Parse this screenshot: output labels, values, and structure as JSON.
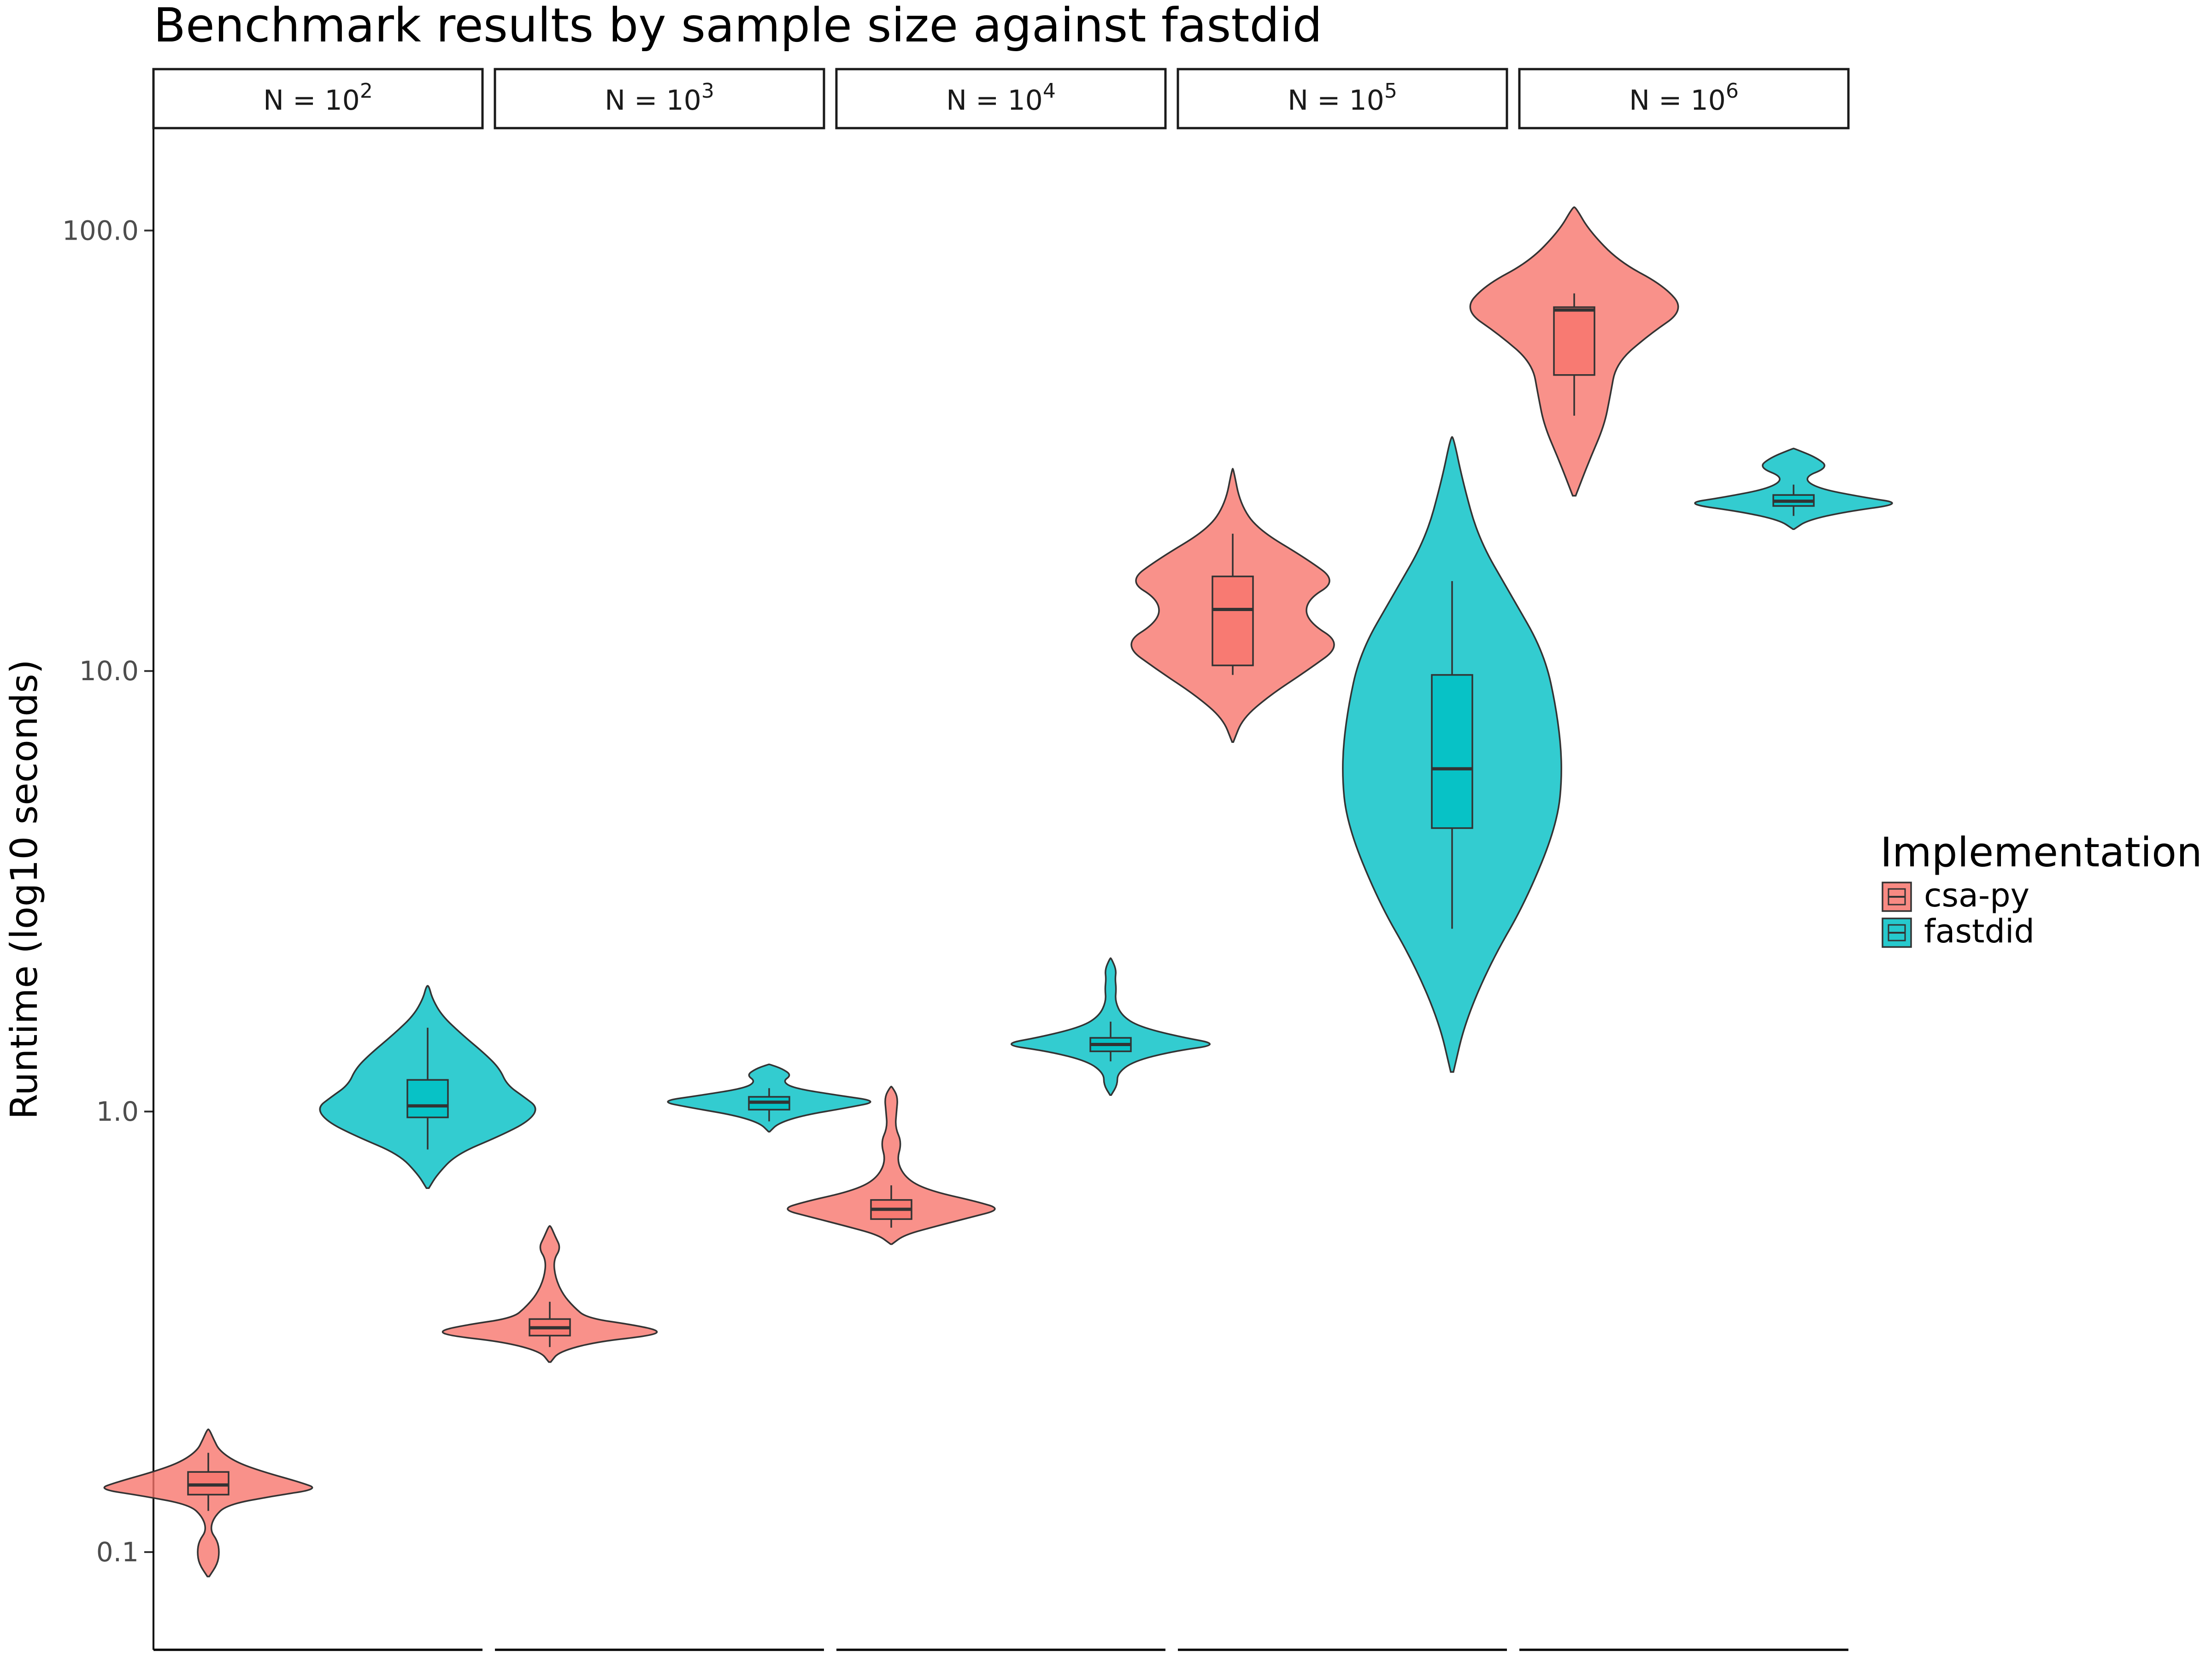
{
  "chart_data": {
    "type": "violin",
    "title": "Benchmark results by sample size against fastdid",
    "xlabel": "",
    "ylabel": "Runtime (log10 seconds)",
    "y_scale": "log10",
    "ylim": [
      0.06,
      170
    ],
    "y_ticks": [
      0.1,
      1.0,
      10.0,
      100.0
    ],
    "y_tick_labels": [
      "0.1",
      "1.0",
      "10.0",
      "100.0"
    ],
    "grid": false,
    "legend": {
      "title": "Implementation",
      "position": "right",
      "entries": [
        {
          "name": "csa-py",
          "color": "#F8766D"
        },
        {
          "name": "fastdid",
          "color": "#00BFC4"
        }
      ]
    },
    "facets": [
      {
        "strip": {
          "base": "N = 10",
          "exponent": "2"
        },
        "series": [
          {
            "name": "csa-py",
            "median": 0.142,
            "q1": 0.135,
            "q3": 0.152,
            "whisker_low": 0.124,
            "whisker_high": 0.168,
            "violin": [
              [
                0.088,
                0.005
              ],
              [
                0.094,
                0.05
              ],
              [
                0.1,
                0.06
              ],
              [
                0.106,
                0.05
              ],
              [
                0.112,
                0.01
              ],
              [
                0.12,
                0.03
              ],
              [
                0.128,
                0.1
              ],
              [
                0.134,
                0.35
              ],
              [
                0.139,
                0.6
              ],
              [
                0.144,
                0.5
              ],
              [
                0.152,
                0.3
              ],
              [
                0.16,
                0.15
              ],
              [
                0.17,
                0.06
              ],
              [
                0.18,
                0.03
              ],
              [
                0.19,
                0.005
              ]
            ]
          },
          {
            "name": "fastdid",
            "median": 1.03,
            "q1": 0.97,
            "q3": 1.18,
            "whisker_low": 0.82,
            "whisker_high": 1.55,
            "violin": [
              [
                0.67,
                0.005
              ],
              [
                0.72,
                0.04
              ],
              [
                0.8,
                0.12
              ],
              [
                0.88,
                0.3
              ],
              [
                0.95,
                0.42
              ],
              [
                1.02,
                0.46
              ],
              [
                1.08,
                0.4
              ],
              [
                1.15,
                0.33
              ],
              [
                1.25,
                0.3
              ],
              [
                1.35,
                0.24
              ],
              [
                1.5,
                0.14
              ],
              [
                1.65,
                0.06
              ],
              [
                1.8,
                0.02
              ],
              [
                1.93,
                0.005
              ]
            ]
          }
        ]
      },
      {
        "strip": {
          "base": "N = 10",
          "exponent": "3"
        },
        "series": [
          {
            "name": "csa-py",
            "median": 0.323,
            "q1": 0.31,
            "q3": 0.338,
            "whisker_low": 0.292,
            "whisker_high": 0.37,
            "violin": [
              [
                0.27,
                0.005
              ],
              [
                0.285,
                0.05
              ],
              [
                0.3,
                0.25
              ],
              [
                0.31,
                0.55
              ],
              [
                0.318,
                0.6
              ],
              [
                0.328,
                0.45
              ],
              [
                0.34,
                0.2
              ],
              [
                0.36,
                0.13
              ],
              [
                0.385,
                0.07
              ],
              [
                0.42,
                0.03
              ],
              [
                0.46,
                0.02
              ],
              [
                0.49,
                0.06
              ],
              [
                0.52,
                0.03
              ],
              [
                0.55,
                0.005
              ]
            ]
          },
          {
            "name": "fastdid",
            "median": 1.05,
            "q1": 1.01,
            "q3": 1.08,
            "whisker_low": 0.95,
            "whisker_high": 1.13,
            "violin": [
              [
                0.9,
                0.005
              ],
              [
                0.94,
                0.08
              ],
              [
                0.98,
                0.3
              ],
              [
                1.02,
                0.7
              ],
              [
                1.055,
                0.99
              ],
              [
                1.09,
                0.6
              ],
              [
                1.13,
                0.22
              ],
              [
                1.17,
                0.12
              ],
              [
                1.21,
                0.2
              ],
              [
                1.25,
                0.12
              ],
              [
                1.28,
                0.005
              ]
            ]
          }
        ]
      },
      {
        "strip": {
          "base": "N = 10",
          "exponent": "4"
        },
        "series": [
          {
            "name": "csa-py",
            "median": 0.6,
            "q1": 0.57,
            "q3": 0.63,
            "whisker_low": 0.545,
            "whisker_high": 0.68,
            "violin": [
              [
                0.5,
                0.005
              ],
              [
                0.525,
                0.1
              ],
              [
                0.55,
                0.35
              ],
              [
                0.575,
                0.6
              ],
              [
                0.6,
                0.84
              ],
              [
                0.625,
                0.65
              ],
              [
                0.66,
                0.3
              ],
              [
                0.7,
                0.12
              ],
              [
                0.77,
                0.04
              ],
              [
                0.85,
                0.08
              ],
              [
                0.92,
                0.03
              ],
              [
                1.0,
                0.04
              ],
              [
                1.08,
                0.05
              ],
              [
                1.14,
                0.005
              ]
            ]
          },
          {
            "name": "fastdid",
            "median": 1.42,
            "q1": 1.37,
            "q3": 1.47,
            "whisker_low": 1.3,
            "whisker_high": 1.6,
            "violin": [
              [
                1.09,
                0.005
              ],
              [
                1.15,
                0.06
              ],
              [
                1.22,
                0.06
              ],
              [
                1.3,
                0.2
              ],
              [
                1.37,
                0.55
              ],
              [
                1.42,
                0.98
              ],
              [
                1.48,
                0.6
              ],
              [
                1.56,
                0.25
              ],
              [
                1.65,
                0.1
              ],
              [
                1.78,
                0.04
              ],
              [
                1.9,
                0.05
              ],
              [
                2.0,
                0.04
              ],
              [
                2.1,
                0.05
              ],
              [
                2.23,
                0.005
              ]
            ]
          }
        ]
      },
      {
        "strip": {
          "base": "N = 10",
          "exponent": "5"
        },
        "series": [
          {
            "name": "csa-py",
            "median": 13.8,
            "q1": 10.3,
            "q3": 16.4,
            "whisker_low": 9.8,
            "whisker_high": 20.5,
            "violin": [
              [
                6.9,
                0.005
              ],
              [
                7.8,
                0.08
              ],
              [
                8.8,
                0.3
              ],
              [
                10.0,
                0.6
              ],
              [
                11.5,
                0.9
              ],
              [
                13.0,
                0.6
              ],
              [
                14.5,
                0.6
              ],
              [
                16.0,
                0.85
              ],
              [
                18.0,
                0.6
              ],
              [
                21.0,
                0.2
              ],
              [
                24.0,
                0.06
              ],
              [
                28.8,
                0.005
              ]
            ]
          },
          {
            "name": "fastdid",
            "median": 6.0,
            "q1": 4.4,
            "q3": 9.8,
            "whisker_low": 2.6,
            "whisker_high": 16.0,
            "violin": [
              [
                1.23,
                0.005
              ],
              [
                1.6,
                0.05
              ],
              [
                2.2,
                0.15
              ],
              [
                3.0,
                0.28
              ],
              [
                4.5,
                0.4
              ],
              [
                6.0,
                0.42
              ],
              [
                8.0,
                0.4
              ],
              [
                11.0,
                0.35
              ],
              [
                15.0,
                0.22
              ],
              [
                20.0,
                0.1
              ],
              [
                27.0,
                0.04
              ],
              [
                34.0,
                0.005
              ]
            ]
          }
        ]
      },
      {
        "strip": {
          "base": "N = 10",
          "exponent": "6"
        },
        "series": [
          {
            "name": "csa-py",
            "median": 66.0,
            "q1": 47.0,
            "q3": 67.0,
            "whisker_low": 38.0,
            "whisker_high": 72.0,
            "violin": [
              [
                25.0,
                0.005
              ],
              [
                30.0,
                0.05
              ],
              [
                36.0,
                0.1
              ],
              [
                42.0,
                0.12
              ],
              [
                50.0,
                0.14
              ],
              [
                58.0,
                0.25
              ],
              [
                66.0,
                0.37
              ],
              [
                75.0,
                0.3
              ],
              [
                85.0,
                0.15
              ],
              [
                100.0,
                0.05
              ],
              [
                113.0,
                0.005
              ]
            ]
          },
          {
            "name": "fastdid",
            "median": 24.3,
            "q1": 23.7,
            "q3": 25.1,
            "whisker_low": 22.5,
            "whisker_high": 26.5,
            "violin": [
              [
                21.0,
                0.005
              ],
              [
                22.0,
                0.12
              ],
              [
                23.0,
                0.45
              ],
              [
                24.0,
                0.95
              ],
              [
                24.8,
                0.6
              ],
              [
                26.0,
                0.2
              ],
              [
                27.5,
                0.08
              ],
              [
                29.0,
                0.3
              ],
              [
                30.5,
                0.2
              ],
              [
                32.0,
                0.005
              ]
            ]
          }
        ]
      }
    ]
  }
}
